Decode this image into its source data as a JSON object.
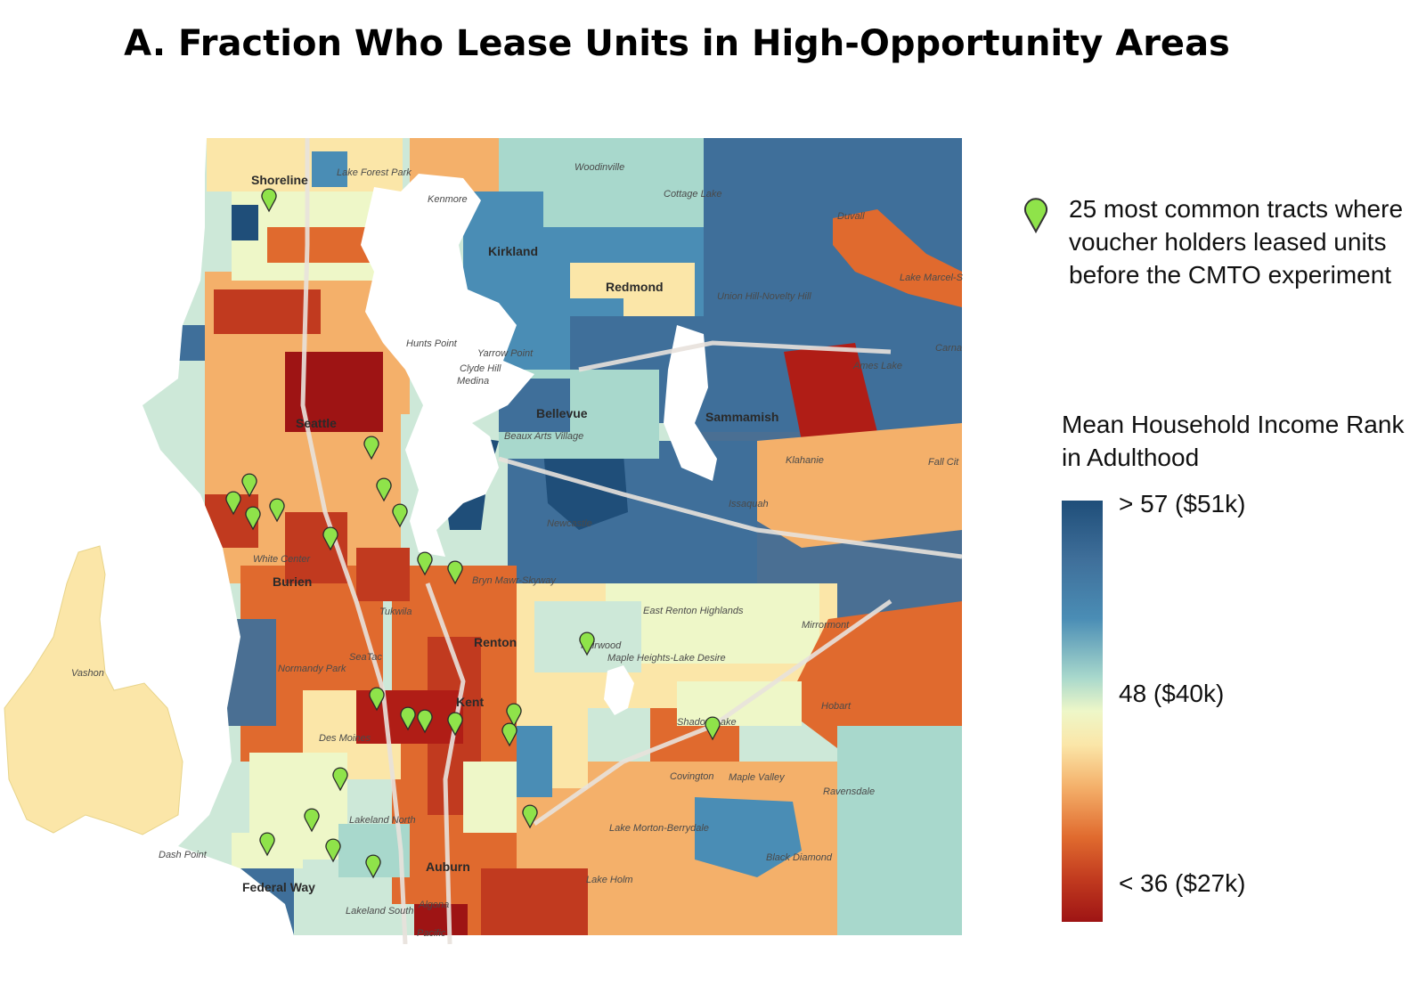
{
  "title": "A. Fraction Who Lease Units in High-Opportunity Areas",
  "map": {
    "places_major": [
      "Shoreline",
      "Kirkland",
      "Redmond",
      "Seattle",
      "Bellevue",
      "Sammamish",
      "Burien",
      "Renton",
      "Kent",
      "Federal Way",
      "Auburn"
    ],
    "places_minor": [
      "Lake Forest Park",
      "Woodinville",
      "Kenmore",
      "Cottage Lake",
      "Duvall",
      "Lake Marcel-S",
      "Union Hill-Novelty Hill",
      "Hunts Point",
      "Yarrow Point",
      "Clyde Hill",
      "Medina",
      "Carna",
      "Ames Lake",
      "Beaux Arts Village",
      "Klahanie",
      "Fall Cit",
      "Issaquah",
      "Newcastle",
      "White Center",
      "Bryn Mawr-Skyway",
      "East Renton Highlands",
      "Mirrormont",
      "Tukwila",
      "Fairwood",
      "Maple Heights-Lake Desire",
      "SeaTac",
      "Normandy Park",
      "Vashon",
      "Hobart",
      "Shadow Lake",
      "Des Moines",
      "Covington",
      "Maple Valley",
      "Ravensdale",
      "Lakeland North",
      "Lake Morton-Berrydale",
      "Black Diamond",
      "Dash Point",
      "Lake Holm",
      "Lakeland South",
      "Algona",
      "Pacific"
    ]
  },
  "legend": {
    "pin_text": "25 most common tracts where voucher holders leased units before the CMTO experiment",
    "scale_title": "Mean Household Income Rank in Adulthood",
    "scale_high": "> 57 ($51k)",
    "scale_mid": "48 ($40k)",
    "scale_low": "< 36 ($27k)"
  },
  "colors": {
    "pin": "#8fe34a",
    "high": "#1f4e79",
    "mid": "#eef7c8",
    "low": "#9e1414",
    "water": "#ffffff"
  }
}
